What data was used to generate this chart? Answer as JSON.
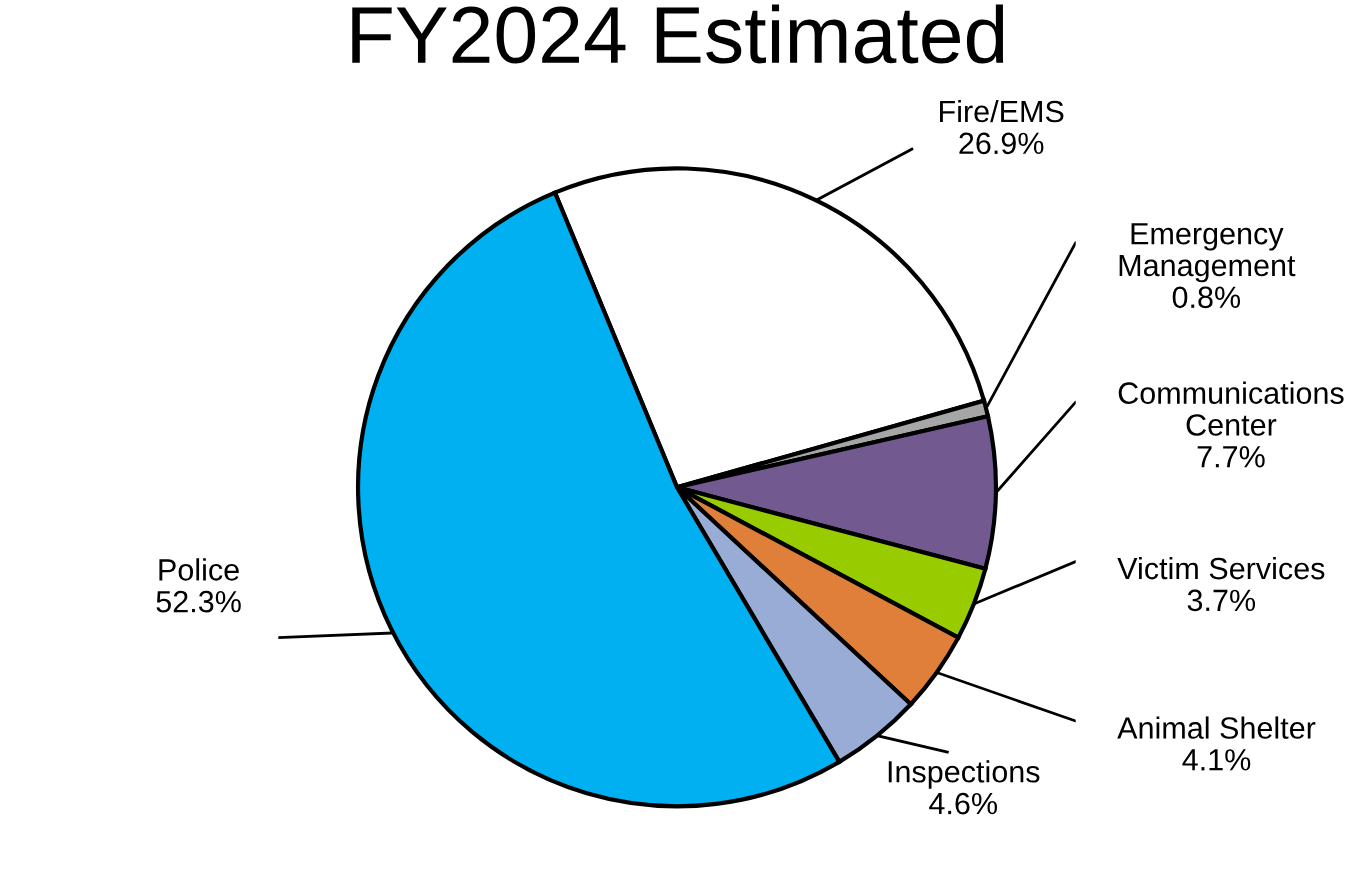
{
  "chart_data": {
    "type": "pie",
    "title": "FY2024 Estimated",
    "categories": [
      "Fire/EMS",
      "Emergency Management",
      "Communications Center",
      "Victim Services",
      "Animal Shelter",
      "Inspections",
      "Police"
    ],
    "values": [
      26.9,
      0.8,
      7.7,
      3.7,
      4.1,
      4.6,
      52.3
    ],
    "value_labels": [
      "26.9%",
      "0.8%",
      "7.7%",
      "3.7%",
      "4.1%",
      "4.6%",
      "52.3%"
    ],
    "colors": [
      "#ffffff",
      "#a6a6a6",
      "#725a91",
      "#99cc00",
      "#e07f3a",
      "#98acd6",
      "#00b0f0"
    ],
    "legend": false
  }
}
